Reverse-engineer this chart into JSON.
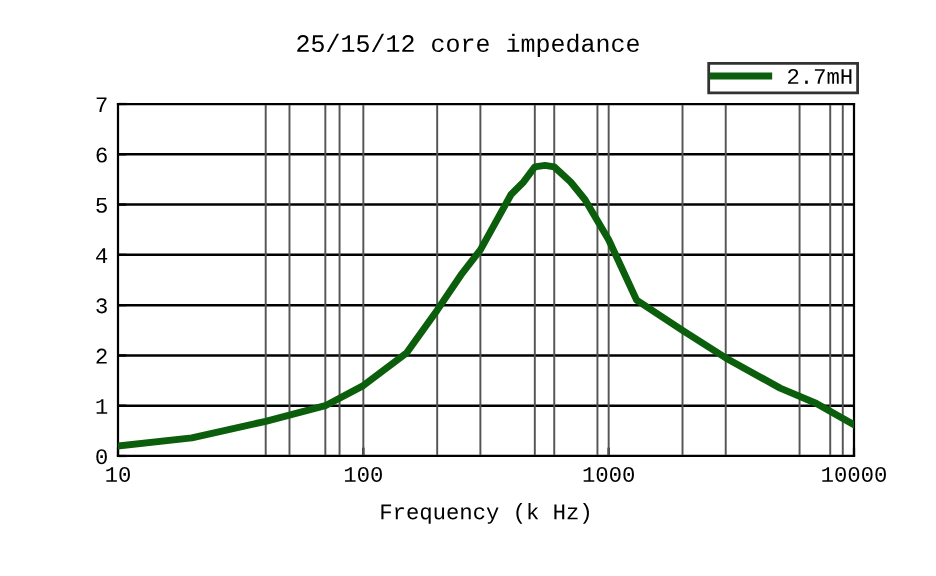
{
  "chart_data": {
    "type": "line",
    "title": "25/15/12 core impedance",
    "xlabel": "Frequency (k Hz)",
    "log": "x",
    "xlim": [
      10,
      10000
    ],
    "xticks": [
      10,
      100,
      1000,
      10000
    ],
    "ylim": [
      0,
      7
    ],
    "yticks": [
      0,
      1,
      2,
      3,
      4,
      5,
      6,
      7
    ],
    "grid": "y",
    "legend": "top right",
    "marker": "none",
    "line_style": "solid",
    "series": [
      {
        "name": "2.7mH",
        "color": "#0b5e0b",
        "x": [
          10,
          20,
          40,
          70,
          100,
          150,
          200,
          250,
          300,
          400,
          450,
          500,
          550,
          600,
          700,
          800,
          1000,
          1300,
          2000,
          3000,
          5000,
          7000,
          10000
        ],
        "values": [
          0.2,
          0.36,
          0.69,
          1.0,
          1.4,
          2.05,
          2.9,
          3.6,
          4.1,
          5.2,
          5.45,
          5.75,
          5.78,
          5.75,
          5.45,
          5.1,
          4.3,
          3.1,
          2.5,
          1.95,
          1.35,
          1.05,
          0.62
        ]
      }
    ],
    "ref_lines": [
      {
        "axis": "x",
        "value": 40
      },
      {
        "axis": "x",
        "value": 50
      },
      {
        "axis": "x",
        "value": 70
      },
      {
        "axis": "x",
        "value": 80
      },
      {
        "axis": "x",
        "value": 100
      },
      {
        "axis": "x",
        "value": 200
      },
      {
        "axis": "x",
        "value": 300
      },
      {
        "axis": "x",
        "value": 500
      },
      {
        "axis": "x",
        "value": 600
      },
      {
        "axis": "x",
        "value": 900
      },
      {
        "axis": "x",
        "value": 1000
      },
      {
        "axis": "x",
        "value": 2000
      },
      {
        "axis": "x",
        "value": 3000
      },
      {
        "axis": "x",
        "value": 6000
      },
      {
        "axis": "x",
        "value": 8000
      },
      {
        "axis": "x",
        "value": 9000
      }
    ]
  }
}
